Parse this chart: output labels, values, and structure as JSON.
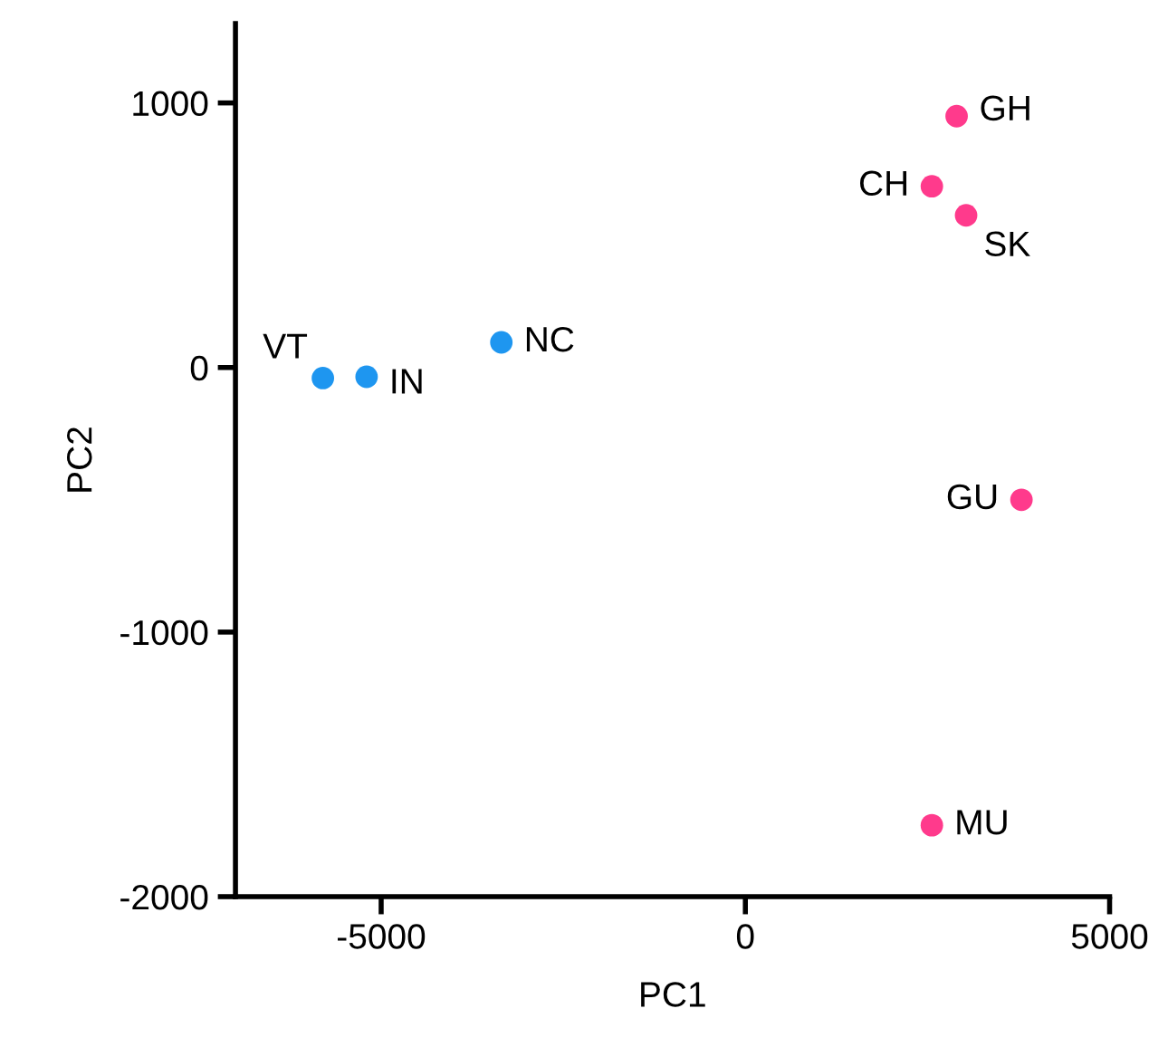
{
  "chart_data": {
    "type": "scatter",
    "xlabel": "PC1",
    "ylabel": "PC2",
    "series": [
      {
        "color": "#1e96f0",
        "x": [
          -5800,
          -5200,
          -3350
        ],
        "values": [
          -40,
          -35,
          95
        ]
      },
      {
        "color": "#ff3a8c",
        "x": [
          2900,
          2560,
          3030,
          3790,
          2560
        ],
        "values": [
          950,
          685,
          575,
          -500,
          -1730
        ]
      }
    ],
    "annotations": [
      {
        "text": "VT",
        "x": -5800,
        "y": -40
      },
      {
        "text": "IN",
        "x": -5200,
        "y": -35
      },
      {
        "text": "NC",
        "x": -3350,
        "y": 95
      },
      {
        "text": "GH",
        "x": 2900,
        "y": 950
      },
      {
        "text": "CH",
        "x": 2560,
        "y": 685
      },
      {
        "text": "SK",
        "x": 3030,
        "y": 575
      },
      {
        "text": "GU",
        "x": 3790,
        "y": -500
      },
      {
        "text": "MU",
        "x": 2560,
        "y": -1730
      }
    ],
    "xlim": [
      -7000,
      5000
    ],
    "xticks": [
      {
        "value": -5000,
        "label": "-5000"
      },
      0,
      5000
    ],
    "ylim": [
      -2000,
      1300
    ],
    "yticks": [
      {
        "value": -2000,
        "label": "-2000"
      },
      {
        "value": -1000,
        "label": "-1000"
      },
      0,
      1000
    ],
    "grid": false,
    "legend": false,
    "marker": "circle"
  }
}
